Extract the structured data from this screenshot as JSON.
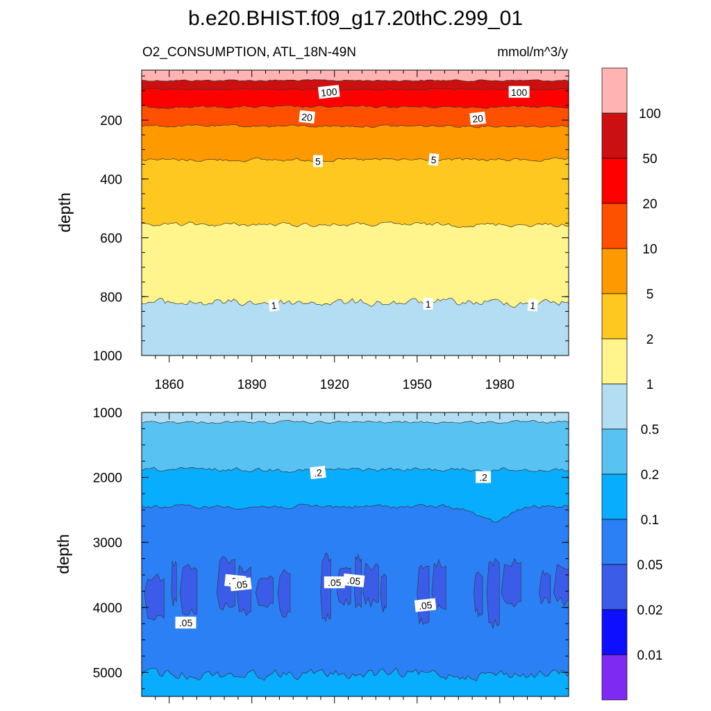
{
  "title": "b.e20.BHIST.f09_g17.20thC.299_01",
  "subtitle_left": "O2_CONSUMPTION, ATL_18N-49N",
  "subtitle_right": "mmol/m^3/y",
  "chart_data": [
    {
      "type": "heatmap",
      "panel": "top",
      "ylabel": "depth",
      "ylim": [
        1000,
        30
      ],
      "y_ticks": [
        200,
        400,
        600,
        800,
        1000
      ],
      "xlim": [
        1850,
        2005
      ],
      "x_ticks": [
        1860,
        1890,
        1920,
        1950,
        1980
      ],
      "contour_boundaries_depth": [
        {
          "level": 100,
          "depth": 65
        },
        {
          "level": 50,
          "depth": 95
        },
        {
          "level": 20,
          "depth": 155
        },
        {
          "level": 10,
          "depth": 220
        },
        {
          "level": 5,
          "depth": 335
        },
        {
          "level": 2,
          "depth": 555
        },
        {
          "level": 1,
          "depth": 820
        }
      ],
      "contour_labels": [
        {
          "text": "100",
          "year": 1918,
          "depth": 105
        },
        {
          "text": "100",
          "year": 1987,
          "depth": 105
        },
        {
          "text": "20",
          "year": 1910,
          "depth": 190
        },
        {
          "text": "20",
          "year": 1972,
          "depth": 195
        },
        {
          "text": "5",
          "year": 1914,
          "depth": 340
        },
        {
          "text": "5",
          "year": 1956,
          "depth": 335
        },
        {
          "text": "1",
          "year": 1898,
          "depth": 830
        },
        {
          "text": "1",
          "year": 1954,
          "depth": 825
        },
        {
          "text": "1",
          "year": 1992,
          "depth": 830
        }
      ]
    },
    {
      "type": "heatmap",
      "panel": "bottom",
      "ylabel": "depth",
      "ylim": [
        5370,
        1000
      ],
      "y_ticks": [
        1000,
        2000,
        3000,
        4000,
        5000
      ],
      "xlim": [
        1850,
        2005
      ],
      "contour_boundaries_depth": [
        {
          "level": 0.5,
          "depth": 1150
        },
        {
          "level": 0.2,
          "depth": 1880
        },
        {
          "level": 0.1,
          "depth": 2450
        },
        {
          "level": 0.05,
          "depth": 3350,
          "depth_bottom": 4200
        },
        {
          "level": 0.05,
          "depth": 5030
        }
      ],
      "contour_labels": [
        {
          "text": ".2",
          "year": 1914,
          "depth": 1930
        },
        {
          "text": ".2",
          "year": 1974,
          "depth": 2000
        },
        {
          "text": ".05",
          "year": 1884,
          "depth": 3600
        },
        {
          "text": ".05",
          "year": 1886,
          "depth": 3650
        },
        {
          "text": ".05",
          "year": 1920,
          "depth": 3620
        },
        {
          "text": ".05",
          "year": 1927,
          "depth": 3590
        },
        {
          "text": ".05",
          "year": 1953,
          "depth": 3970
        },
        {
          "text": ".05",
          "year": 1866,
          "depth": 4240
        }
      ]
    },
    {
      "type": "colorbar",
      "levels": [
        "0.01",
        "0.02",
        "0.05",
        "0.1",
        "0.2",
        "0.5",
        "1",
        "2",
        "5",
        "10",
        "20",
        "50",
        "100"
      ],
      "colors_top_to_bottom": [
        "#ffb3b3",
        "#cc1010",
        "#ff0000",
        "#ff5000",
        "#ff9900",
        "#ffc820",
        "#fff58c",
        "#b3ddf2",
        "#58c3f3",
        "#08adfe",
        "#2b80f5",
        "#3a5ce8",
        "#0f0fff",
        "#7e2af2"
      ]
    }
  ]
}
